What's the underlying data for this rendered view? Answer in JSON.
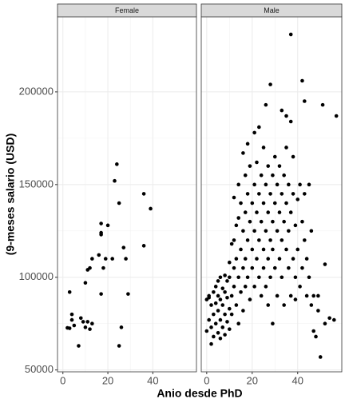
{
  "chart_data": {
    "type": "scatter",
    "facet": true,
    "xlabel": "Anio desde PhD",
    "ylabel": "(9-meses salario (USD)",
    "xlim": [
      -2.4,
      59.4
    ],
    "ylim": [
      49000,
      240500
    ],
    "xticks": [
      0,
      20,
      40
    ],
    "yticks": [
      50000,
      100000,
      150000,
      200000
    ],
    "grid": true,
    "color": "#000000",
    "series": [
      {
        "name": "Female",
        "x": [
          2,
          3,
          3,
          4,
          4,
          5,
          7,
          8,
          9,
          10,
          10,
          11,
          11,
          12,
          12,
          13,
          13,
          17,
          16,
          17,
          17,
          17,
          18,
          19,
          20,
          22,
          23,
          24,
          25,
          25,
          26,
          27,
          28,
          29,
          36,
          36,
          39
        ],
        "values": [
          72700,
          72500,
          92000,
          80000,
          77000,
          74000,
          63000,
          78000,
          76000,
          97000,
          73000,
          104000,
          76000,
          105000,
          72000,
          75000,
          110000,
          91000,
          112000,
          124000,
          123000,
          129000,
          105000,
          110000,
          128000,
          110000,
          152000,
          161000,
          140000,
          63000,
          73000,
          116000,
          110000,
          91000,
          145000,
          117000,
          137000
        ]
      },
      {
        "name": "Male",
        "x": [
          0,
          1,
          0,
          1,
          1,
          2,
          2,
          2,
          3,
          3,
          3,
          4,
          4,
          4,
          5,
          5,
          5,
          5,
          6,
          6,
          6,
          6,
          7,
          7,
          7,
          8,
          8,
          8,
          8,
          9,
          9,
          9,
          10,
          10,
          10,
          10,
          11,
          11,
          11,
          12,
          12,
          12,
          12,
          13,
          13,
          13,
          14,
          14,
          14,
          14,
          15,
          15,
          15,
          16,
          16,
          16,
          16,
          17,
          17,
          17,
          17,
          18,
          18,
          18,
          18,
          19,
          19,
          19,
          20,
          20,
          20,
          21,
          21,
          21,
          21,
          22,
          22,
          22,
          23,
          23,
          23,
          23,
          24,
          24,
          24,
          25,
          25,
          25,
          25,
          26,
          26,
          26,
          26,
          27,
          27,
          27,
          27,
          28,
          28,
          28,
          28,
          29,
          29,
          29,
          29,
          30,
          30,
          30,
          31,
          31,
          31,
          32,
          32,
          32,
          33,
          33,
          33,
          33,
          34,
          34,
          34,
          35,
          35,
          35,
          35,
          36,
          36,
          36,
          37,
          37,
          37,
          37,
          38,
          38,
          38,
          39,
          39,
          39,
          40,
          40,
          41,
          41,
          42,
          42,
          42,
          43,
          43,
          43,
          44,
          44,
          45,
          45,
          46,
          46,
          47,
          47,
          48,
          49,
          49,
          50,
          51,
          52,
          52,
          54,
          56,
          57
        ],
        "values": [
          88000,
          77000,
          71000,
          89000,
          90000,
          64000,
          73000,
          85000,
          68000,
          80000,
          92000,
          75000,
          86000,
          95000,
          70000,
          82000,
          90000,
          98000,
          67000,
          77000,
          88000,
          100000,
          73000,
          85000,
          94000,
          69000,
          80000,
          92000,
          101000,
          76000,
          89000,
          98000,
          72000,
          83000,
          100000,
          108000,
          118000,
          90000,
          80000,
          105000,
          120000,
          143000,
          95000,
          110000,
          128000,
          85000,
          100000,
          132000,
          150000,
          75000,
          115000,
          140000,
          92000,
          105000,
          125000,
          167000,
          82000,
          110000,
          135000,
          155000,
          95000,
          120000,
          145000,
          100000,
          172000,
          88000,
          130000,
          160000,
          105000,
          140000,
          115000,
          125000,
          150000,
          95000,
          178000,
          110000,
          135000,
          162000,
          100000,
          145000,
          120000,
          181000,
          130000,
          155000,
          90000,
          115000,
          140000,
          170000,
          105000,
          193000,
          125000,
          150000,
          95000,
          110000,
          135000,
          160000,
          85000,
          204000,
          120000,
          145000,
          100000,
          75000,
          130000,
          155000,
          115000,
          140000,
          165000,
          105000,
          125000,
          150000,
          90000,
          110000,
          135000,
          160000,
          190000,
          120000,
          145000,
          100000,
          130000,
          155000,
          85000,
          187000,
          115000,
          140000,
          170000,
          105000,
          125000,
          150000,
          231000,
          184000,
          90000,
          135000,
          110000,
          165000,
          145000,
          100000,
          128000,
          88000,
          142000,
          115000,
          150000,
          95000,
          206000,
          130000,
          105000,
          195000,
          145000,
          120000,
          90000,
          110000,
          150000,
          100000,
          125000,
          85000,
          71000,
          90000,
          68000,
          90000,
          82000,
          57000,
          193000,
          107000,
          75000,
          78000,
          77000,
          187000
        ]
      }
    ]
  }
}
